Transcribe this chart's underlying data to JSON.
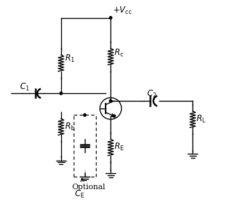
{
  "fig_width": 3.31,
  "fig_height": 3.12,
  "dpi": 100,
  "bg_color": "#ffffff",
  "line_color": "#000000",
  "lw": 1.0
}
